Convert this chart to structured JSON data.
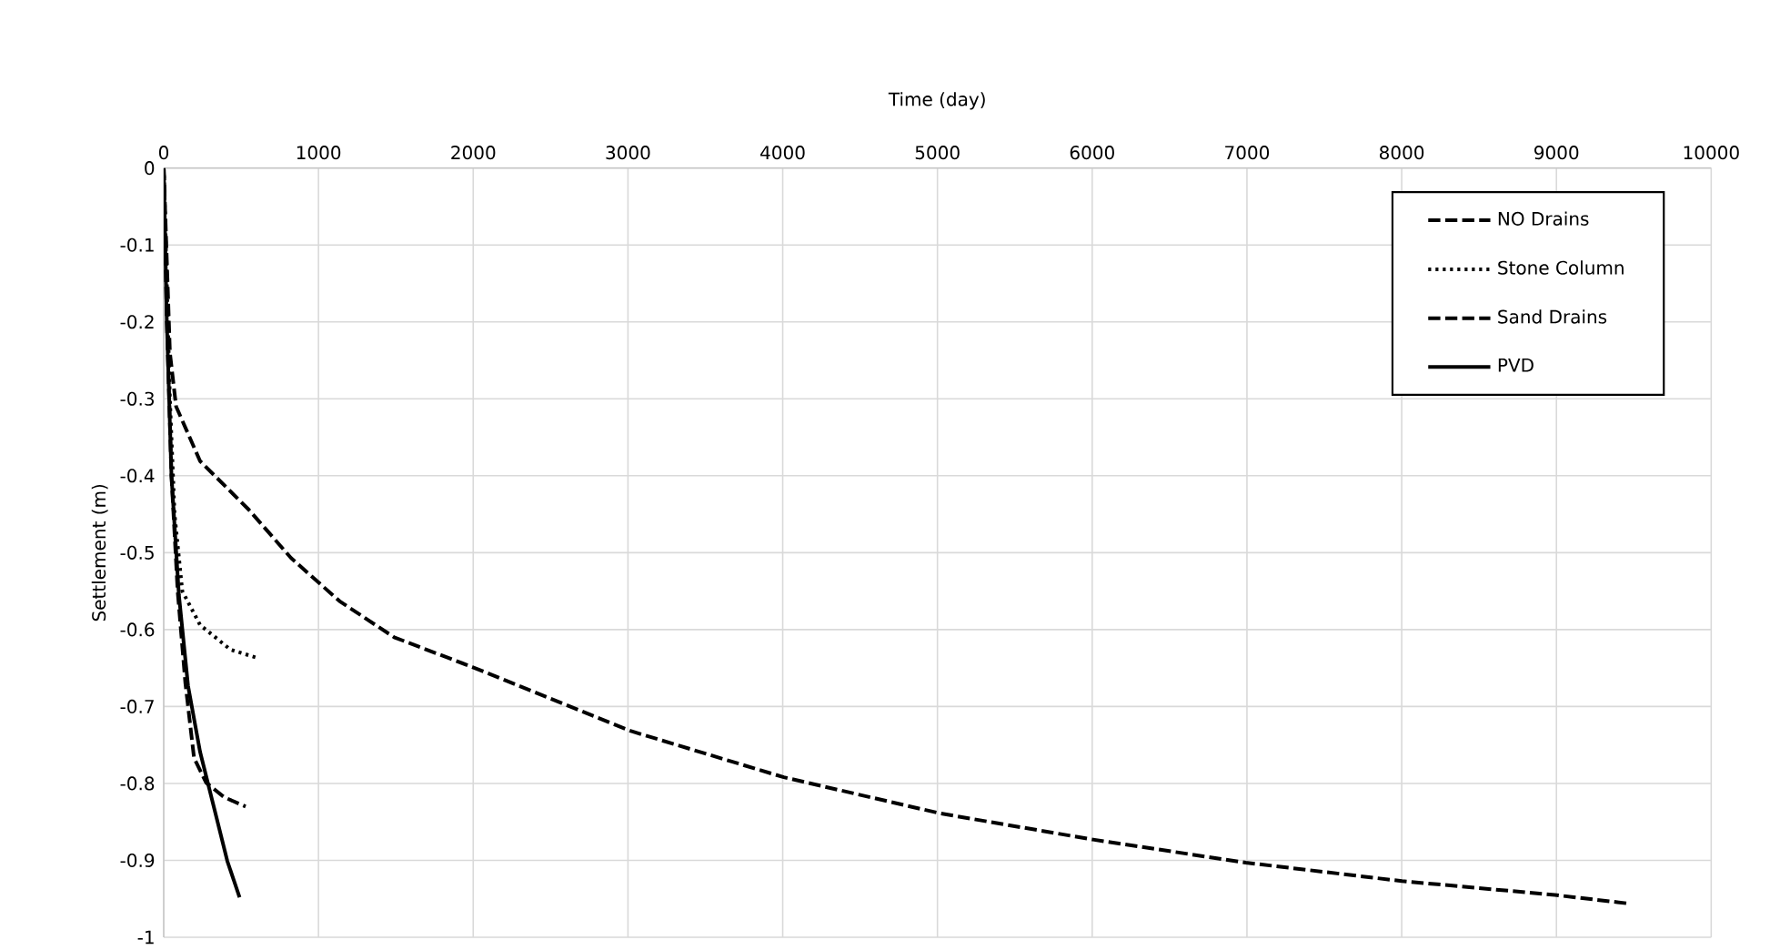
{
  "chart_data": {
    "type": "line",
    "xlabel": "Time (day)",
    "ylabel": "Settlement (m)",
    "xlim": [
      0,
      10000
    ],
    "xticks": [
      0,
      1000,
      2000,
      3000,
      4000,
      5000,
      6000,
      7000,
      8000,
      9000,
      10000
    ],
    "ylim": [
      -1,
      0
    ],
    "yticks": [
      0,
      -0.1,
      -0.2,
      -0.3,
      -0.4,
      -0.5,
      -0.6,
      -0.7,
      -0.8,
      -0.9,
      -1
    ],
    "grid": true,
    "legend": "top right",
    "marker": "none",
    "series": [
      {
        "name": "NO Drains",
        "color": "#000000",
        "line_style": "dashed",
        "x": [
          0,
          20,
          40,
          80,
          235,
          549,
          823,
          1136,
          1489,
          1998,
          3020,
          4007,
          5018,
          6005,
          6992,
          8002,
          8990,
          9460
        ],
        "values": [
          0,
          -0.12,
          -0.24,
          -0.31,
          -0.381,
          -0.444,
          -0.507,
          -0.563,
          -0.61,
          -0.649,
          -0.732,
          -0.792,
          -0.839,
          -0.873,
          -0.903,
          -0.927,
          -0.945,
          -0.956
        ]
      },
      {
        "name": "Stone Column",
        "color": "#000000",
        "line_style": "dotted",
        "x": [
          0,
          20,
          40,
          70,
          120,
          235,
          431,
          607
        ],
        "values": [
          0,
          -0.15,
          -0.3,
          -0.45,
          -0.55,
          -0.594,
          -0.626,
          -0.637
        ]
      },
      {
        "name": "Sand Drains",
        "color": "#000000",
        "line_style": "dashed",
        "x": [
          0,
          20,
          50,
          90,
          140,
          196,
          274,
          391,
          529
        ],
        "values": [
          0,
          -0.2,
          -0.4,
          -0.55,
          -0.67,
          -0.767,
          -0.799,
          -0.818,
          -0.83
        ]
      },
      {
        "name": "PVD",
        "color": "#000000",
        "line_style": "solid",
        "x": [
          0,
          20,
          50,
          98,
          157,
          235,
          333,
          411,
          490
        ],
        "values": [
          0,
          -0.2,
          -0.4,
          -0.555,
          -0.673,
          -0.759,
          -0.838,
          -0.901,
          -0.948
        ]
      }
    ]
  }
}
